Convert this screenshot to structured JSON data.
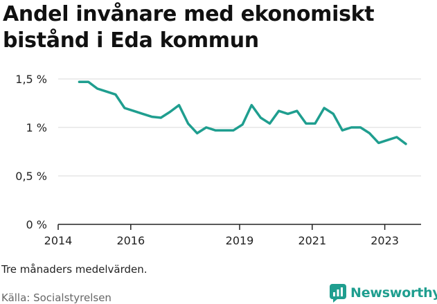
{
  "chart_data": {
    "type": "line",
    "title": "Andel invånare med ekonomiskt bistånd i Eda kommun",
    "note": "Tre månaders medelvärden.",
    "source": "Källa: Socialstyrelsen",
    "brand": "Newsworthy",
    "ylim": [
      0,
      1.5
    ],
    "xlim": [
      2014,
      2024
    ],
    "y_ticks": [
      {
        "value": 0,
        "label": "0 %"
      },
      {
        "value": 0.5,
        "label": "0,5 %"
      },
      {
        "value": 1,
        "label": "1 %"
      },
      {
        "value": 1.5,
        "label": "1,5 %"
      }
    ],
    "x_ticks": [
      {
        "value": 2014,
        "label": "2014"
      },
      {
        "value": 2016,
        "label": "2016"
      },
      {
        "value": 2019,
        "label": "2019"
      },
      {
        "value": 2021,
        "label": "2021"
      },
      {
        "value": 2023,
        "label": "2023"
      }
    ],
    "grid": true,
    "color": "#1f9e8f",
    "series": [
      {
        "x": [
          2014.58,
          2014.83,
          2015.08,
          2015.33,
          2015.58,
          2015.83,
          2016.08,
          2016.33,
          2016.58,
          2016.83,
          2017.08,
          2017.33,
          2017.58,
          2017.83,
          2018.08,
          2018.33,
          2018.58,
          2018.83,
          2019.08,
          2019.33,
          2019.58,
          2019.83,
          2020.08,
          2020.33,
          2020.58,
          2020.83,
          2021.08,
          2021.33,
          2021.58,
          2021.83,
          2022.08,
          2022.33,
          2022.58,
          2022.83,
          2023.08,
          2023.33,
          2023.58
        ],
        "values": [
          1.47,
          1.47,
          1.4,
          1.37,
          1.34,
          1.2,
          1.17,
          1.14,
          1.11,
          1.1,
          1.16,
          1.23,
          1.04,
          0.94,
          1.0,
          0.97,
          0.97,
          0.97,
          1.03,
          1.23,
          1.1,
          1.04,
          1.17,
          1.14,
          1.17,
          1.04,
          1.04,
          1.2,
          1.14,
          0.97,
          1.0,
          1.0,
          0.94,
          0.84,
          0.87,
          0.9,
          0.83
        ]
      }
    ]
  }
}
